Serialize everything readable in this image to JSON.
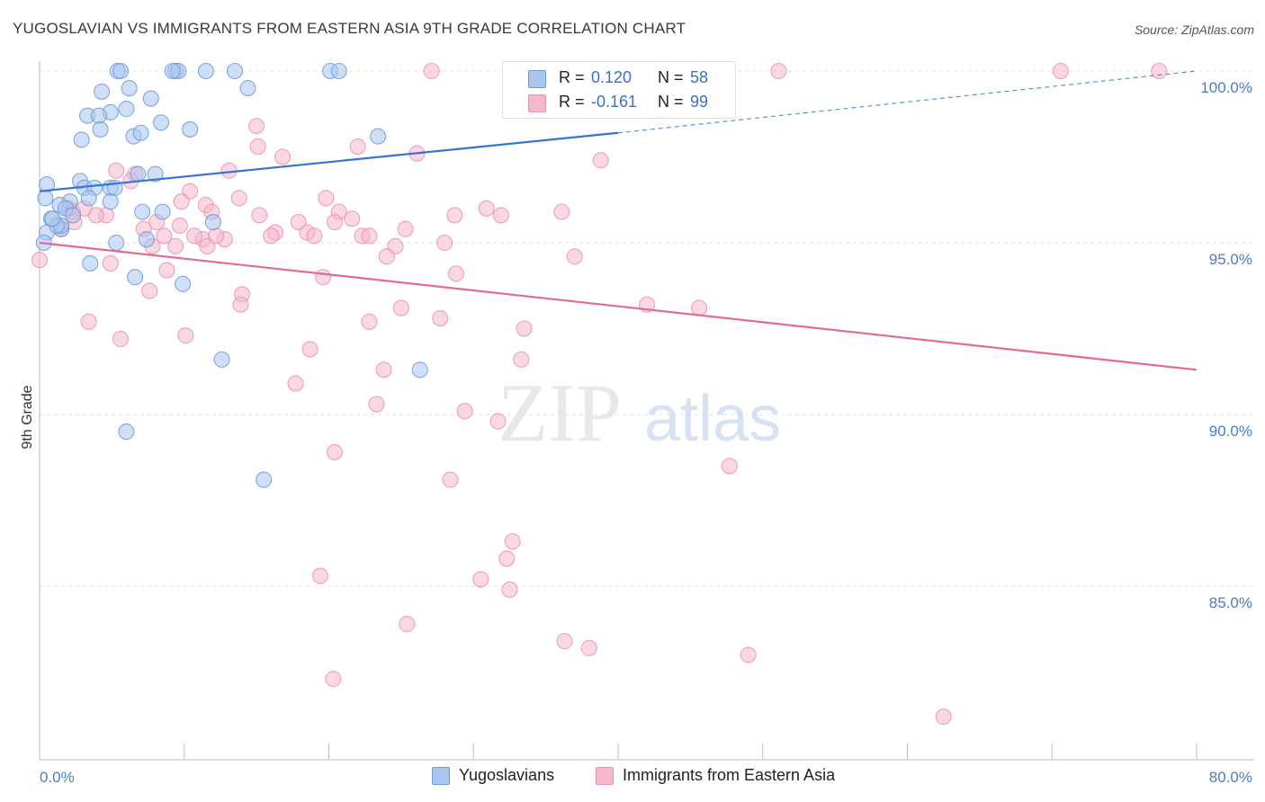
{
  "header": {
    "title": "YUGOSLAVIAN VS IMMIGRANTS FROM EASTERN ASIA 9TH GRADE CORRELATION CHART",
    "source": "Source: ZipAtlas.com"
  },
  "watermark": {
    "zip": "ZIP",
    "atlas": "atlas"
  },
  "legend": {
    "rows": [
      {
        "r_label": "R =",
        "r_value": "0.120",
        "n_label": "N =",
        "n_value": "58"
      },
      {
        "r_label": "R =",
        "r_value": "-0.161",
        "n_label": "N =",
        "n_value": "99"
      }
    ]
  },
  "bottom_legend": {
    "items": [
      "Yugoslavians",
      "Immigrants from Eastern Asia"
    ]
  },
  "colors": {
    "blue_fill": "#a8c5ee",
    "blue_stroke": "#6f9ad8",
    "blue_line": "#3575d1",
    "pink_fill": "#f6b8cb",
    "pink_stroke": "#ec92b0",
    "pink_line": "#e36a97",
    "grid": "#e3e3e3",
    "tick_text": "#4a7cc7"
  },
  "chart_data": {
    "type": "scatter",
    "title": "YUGOSLAVIAN VS IMMIGRANTS FROM EASTERN ASIA 9TH GRADE CORRELATION CHART",
    "xlabel": "",
    "ylabel": "9th Grade",
    "xlim": [
      0,
      80
    ],
    "ylim": [
      80.5,
      100.7
    ],
    "x_tick_labels": [
      "0.0%",
      "80.0%"
    ],
    "y_ticks": [
      85,
      90,
      95,
      100
    ],
    "y_tick_labels": [
      "85.0%",
      "90.0%",
      "95.0%",
      "100.0%"
    ],
    "grid": true,
    "legend_placement": "top-center",
    "series": [
      {
        "name": "Yugoslavians",
        "color": "#6f9ad8",
        "r": 0.12,
        "n": 58,
        "trend": {
          "x0": 0,
          "y0": 96.5,
          "x1": 40,
          "y1": 98.2,
          "dashed_to_x": 80,
          "dashed_to_y": 100.0
        },
        "points": [
          [
            5.4,
            100.0
          ],
          [
            5.6,
            100.0
          ],
          [
            9.4,
            100.0
          ],
          [
            9.6,
            100.0
          ],
          [
            11.5,
            100.0
          ],
          [
            13.5,
            100.0
          ],
          [
            20.1,
            100.0
          ],
          [
            20.7,
            100.0
          ],
          [
            9.2,
            100.0
          ],
          [
            4.3,
            99.4
          ],
          [
            6.2,
            99.5
          ],
          [
            7.7,
            99.2
          ],
          [
            14.4,
            99.5
          ],
          [
            4.9,
            98.8
          ],
          [
            3.3,
            98.7
          ],
          [
            4.1,
            98.7
          ],
          [
            6.0,
            98.9
          ],
          [
            8.4,
            98.5
          ],
          [
            4.2,
            98.3
          ],
          [
            6.5,
            98.1
          ],
          [
            2.9,
            98.0
          ],
          [
            7.0,
            98.2
          ],
          [
            10.4,
            98.3
          ],
          [
            23.4,
            98.1
          ],
          [
            6.8,
            97.0
          ],
          [
            8.0,
            97.0
          ],
          [
            0.5,
            96.7
          ],
          [
            2.8,
            96.8
          ],
          [
            4.9,
            96.6
          ],
          [
            3.1,
            96.6
          ],
          [
            5.2,
            96.6
          ],
          [
            3.8,
            96.6
          ],
          [
            0.4,
            96.3
          ],
          [
            2.1,
            96.2
          ],
          [
            1.4,
            96.1
          ],
          [
            0.8,
            95.7
          ],
          [
            1.8,
            96.0
          ],
          [
            3.4,
            96.3
          ],
          [
            7.1,
            95.9
          ],
          [
            8.5,
            95.9
          ],
          [
            2.3,
            95.8
          ],
          [
            1.5,
            95.4
          ],
          [
            4.9,
            96.2
          ],
          [
            1.5,
            95.5
          ],
          [
            0.5,
            95.3
          ],
          [
            0.3,
            95.0
          ],
          [
            12.0,
            95.6
          ],
          [
            7.4,
            95.1
          ],
          [
            5.3,
            95.0
          ],
          [
            3.5,
            94.4
          ],
          [
            6.6,
            94.0
          ],
          [
            9.9,
            93.8
          ],
          [
            12.6,
            91.6
          ],
          [
            26.3,
            91.3
          ],
          [
            6.0,
            89.5
          ],
          [
            15.5,
            88.1
          ],
          [
            1.2,
            95.5
          ],
          [
            0.9,
            95.7
          ]
        ]
      },
      {
        "name": "Immigrants from Eastern Asia",
        "color": "#ec92b0",
        "r": -0.161,
        "n": 99,
        "trend": {
          "x0": 0,
          "y0": 95.0,
          "x1": 80,
          "y1": 91.3
        },
        "points": [
          [
            27.1,
            100.0
          ],
          [
            37.8,
            100.0
          ],
          [
            39.6,
            100.0
          ],
          [
            44.0,
            100.0
          ],
          [
            51.1,
            100.0
          ],
          [
            70.6,
            100.0
          ],
          [
            77.4,
            100.0
          ],
          [
            15.0,
            98.4
          ],
          [
            22.0,
            97.8
          ],
          [
            15.1,
            97.8
          ],
          [
            16.8,
            97.5
          ],
          [
            26.1,
            97.6
          ],
          [
            38.8,
            97.4
          ],
          [
            5.3,
            97.1
          ],
          [
            13.1,
            97.1
          ],
          [
            6.6,
            97.0
          ],
          [
            10.4,
            96.5
          ],
          [
            11.5,
            96.1
          ],
          [
            9.8,
            96.2
          ],
          [
            2.0,
            96.0
          ],
          [
            4.6,
            95.8
          ],
          [
            3.9,
            95.8
          ],
          [
            15.2,
            95.8
          ],
          [
            20.7,
            95.9
          ],
          [
            28.7,
            95.8
          ],
          [
            30.9,
            96.0
          ],
          [
            11.9,
            95.9
          ],
          [
            8.1,
            95.6
          ],
          [
            17.9,
            95.6
          ],
          [
            20.4,
            95.6
          ],
          [
            21.6,
            95.7
          ],
          [
            7.2,
            95.4
          ],
          [
            2.3,
            95.9
          ],
          [
            8.6,
            95.2
          ],
          [
            16.3,
            95.3
          ],
          [
            16.0,
            95.2
          ],
          [
            18.5,
            95.3
          ],
          [
            19.0,
            95.2
          ],
          [
            22.3,
            95.2
          ],
          [
            22.8,
            95.2
          ],
          [
            12.8,
            95.1
          ],
          [
            24.6,
            94.9
          ],
          [
            28.0,
            95.0
          ],
          [
            11.3,
            95.1
          ],
          [
            10.7,
            95.2
          ],
          [
            7.8,
            94.9
          ],
          [
            9.4,
            94.9
          ],
          [
            11.6,
            94.9
          ],
          [
            37.0,
            94.6
          ],
          [
            4.9,
            94.4
          ],
          [
            0.0,
            94.5
          ],
          [
            2.4,
            95.6
          ],
          [
            1.5,
            95.4
          ],
          [
            28.8,
            94.1
          ],
          [
            19.6,
            94.0
          ],
          [
            14.0,
            93.5
          ],
          [
            7.6,
            93.6
          ],
          [
            42.0,
            93.2
          ],
          [
            45.6,
            93.1
          ],
          [
            13.9,
            93.2
          ],
          [
            25.0,
            93.1
          ],
          [
            27.7,
            92.8
          ],
          [
            22.8,
            92.7
          ],
          [
            33.5,
            92.5
          ],
          [
            3.4,
            92.7
          ],
          [
            5.6,
            92.2
          ],
          [
            10.1,
            92.3
          ],
          [
            18.7,
            91.9
          ],
          [
            33.3,
            91.6
          ],
          [
            23.8,
            91.3
          ],
          [
            17.7,
            90.9
          ],
          [
            23.3,
            90.3
          ],
          [
            29.4,
            90.1
          ],
          [
            31.7,
            89.8
          ],
          [
            20.4,
            88.9
          ],
          [
            47.7,
            88.5
          ],
          [
            28.4,
            88.1
          ],
          [
            32.7,
            86.3
          ],
          [
            32.3,
            85.8
          ],
          [
            30.5,
            85.2
          ],
          [
            32.5,
            84.9
          ],
          [
            19.4,
            85.3
          ],
          [
            25.4,
            83.9
          ],
          [
            36.3,
            83.4
          ],
          [
            38.0,
            83.2
          ],
          [
            49.0,
            83.0
          ],
          [
            20.3,
            82.3
          ],
          [
            62.5,
            81.2
          ],
          [
            3.1,
            96.0
          ],
          [
            6.3,
            96.8
          ],
          [
            9.7,
            95.5
          ],
          [
            13.8,
            96.3
          ],
          [
            19.8,
            96.3
          ],
          [
            25.3,
            95.4
          ],
          [
            31.9,
            95.8
          ],
          [
            36.1,
            95.9
          ],
          [
            12.2,
            95.2
          ],
          [
            8.8,
            94.2
          ],
          [
            24.0,
            94.6
          ]
        ]
      }
    ]
  }
}
